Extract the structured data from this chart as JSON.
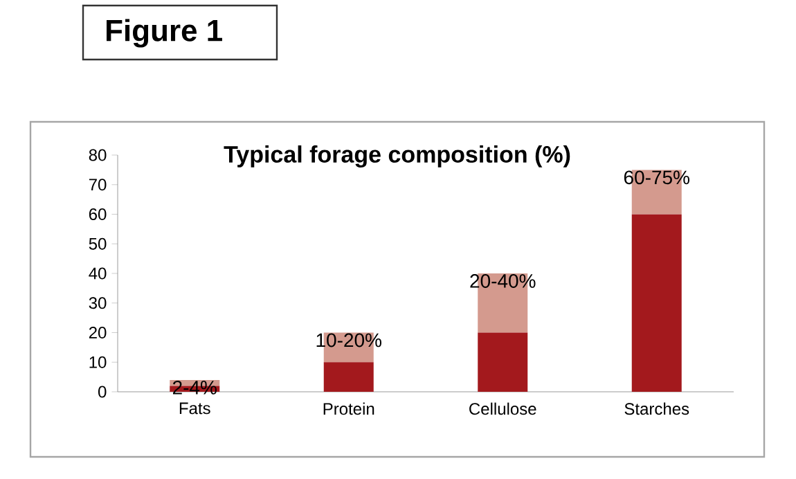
{
  "chart_data": {
    "type": "bar",
    "title": "Typical forage composition (%)",
    "subtitle": "Figure 1",
    "categories": [
      "Fats",
      "Protein",
      "Cellulose",
      "Starches"
    ],
    "stacked": true,
    "series": [
      {
        "color": "#a3191d",
        "values": [
          2,
          10,
          20,
          60
        ]
      },
      {
        "color": "#d49a8e",
        "values": [
          2,
          10,
          20,
          15
        ]
      }
    ],
    "annotations": [
      {
        "text": "2-4%",
        "x": "Fats",
        "y": 4
      },
      {
        "text": "10-20%",
        "x": "Protein",
        "y": 20
      },
      {
        "text": "20-40%",
        "x": "Cellulose",
        "y": 40
      },
      {
        "text": "60-75%",
        "x": "Starches",
        "y": 75
      }
    ],
    "ylim": [
      0,
      80
    ],
    "yticks": [
      0,
      10,
      20,
      30,
      40,
      50,
      60,
      70,
      80
    ],
    "grid": false
  }
}
